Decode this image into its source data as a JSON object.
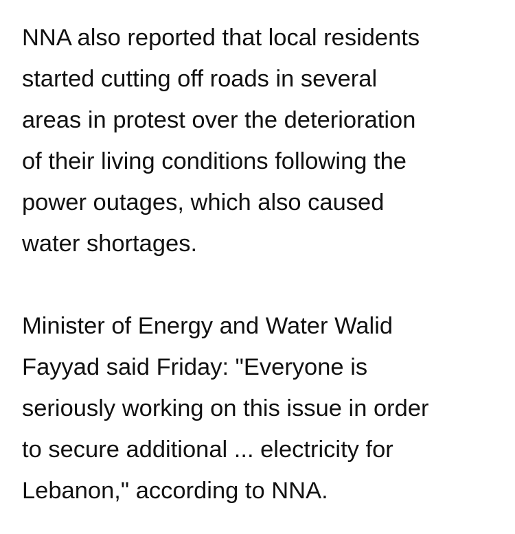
{
  "article": {
    "paragraphs": [
      {
        "lines": [
          "NNA also reported that local residents",
          "started cutting off roads in several",
          "areas in protest over the deterioration",
          "of their living conditions following the",
          "power outages, which also caused",
          "water shortages."
        ]
      },
      {
        "lines": [
          "Minister of Energy and Water Walid",
          "Fayyad said Friday: \"Everyone is",
          "seriously working on this issue in order",
          "to secure additional ... electricity for",
          "Lebanon,\" according to NNA."
        ]
      }
    ]
  }
}
